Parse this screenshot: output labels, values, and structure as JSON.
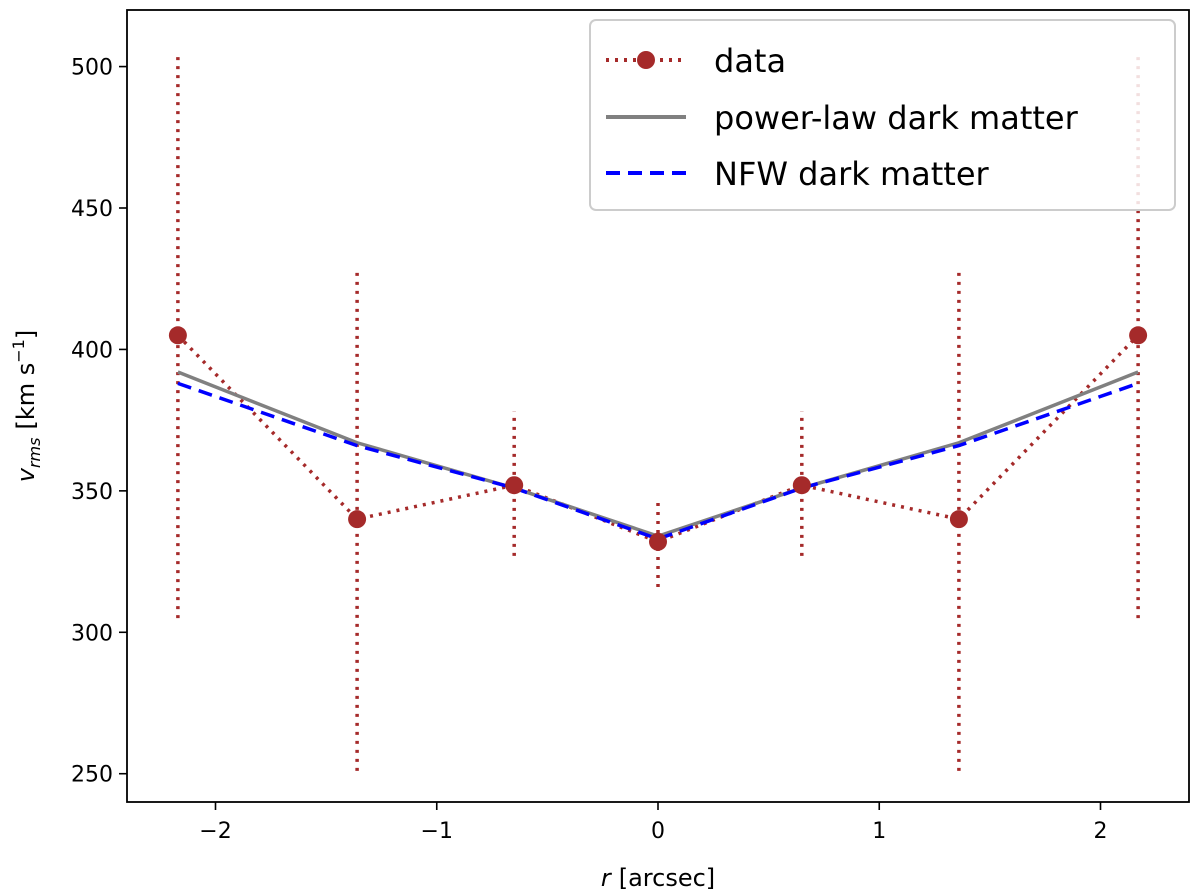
{
  "chart_data": {
    "type": "line",
    "xlabel": {
      "var": "r",
      "unit": "[arcsec]"
    },
    "ylabel": {
      "base": "v",
      "sub": "rms",
      "unit": "[km s",
      "sup": "−1",
      "close": "]"
    },
    "xlim": [
      -2.4,
      2.4
    ],
    "ylim": [
      240,
      520
    ],
    "xticks": [
      -2,
      -1,
      0,
      1,
      2
    ],
    "xtick_labels": [
      "−2",
      "−1",
      "0",
      "1",
      "2"
    ],
    "yticks": [
      250,
      300,
      350,
      400,
      450,
      500
    ],
    "ytick_labels": [
      "250",
      "300",
      "350",
      "400",
      "450",
      "500"
    ],
    "legend_position": "top-right",
    "series": [
      {
        "name": "data",
        "style": "dotted-with-markers",
        "color": "#a52a2a",
        "x": [
          -2.17,
          -1.36,
          -0.65,
          0.0,
          0.65,
          1.36,
          2.17
        ],
        "y": [
          405,
          340,
          352,
          332,
          352,
          340,
          405
        ],
        "error_low": [
          305,
          251,
          327,
          316,
          327,
          251,
          305
        ],
        "error_high": [
          505,
          428,
          378,
          347,
          378,
          428,
          505
        ]
      },
      {
        "name": "power-law dark matter",
        "style": "solid",
        "color": "#808080",
        "x": [
          -2.17,
          -1.36,
          -0.65,
          0.0,
          0.65,
          1.36,
          2.17
        ],
        "y": [
          392,
          367,
          351,
          334,
          351,
          367,
          392
        ]
      },
      {
        "name": "NFW dark matter",
        "style": "dashed",
        "color": "#0000ff",
        "x": [
          -2.17,
          -1.36,
          -0.65,
          0.0,
          0.65,
          1.36,
          2.17
        ],
        "y": [
          388,
          366,
          351,
          333,
          351,
          366,
          388
        ]
      }
    ]
  }
}
